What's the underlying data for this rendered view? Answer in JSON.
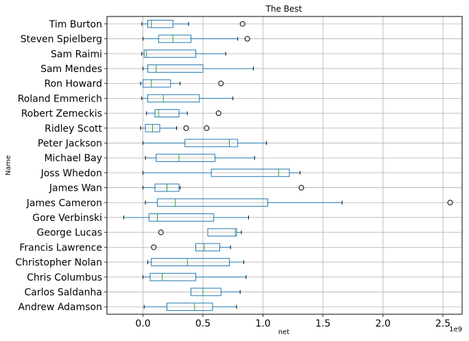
{
  "chart_data": {
    "type": "boxplot",
    "title": "The Best",
    "xlabel": "net",
    "ylabel": "Name",
    "x_offset_label": "1e9",
    "xlim": [
      -0.3,
      2.66
    ],
    "xticks": [
      0.0,
      0.5,
      1.0,
      1.5,
      2.0,
      2.5
    ],
    "xtick_labels": [
      "0.0",
      "0.5",
      "1.0",
      "1.5",
      "2.0",
      "2.5"
    ],
    "grid": true,
    "colors": {
      "box": "#1f77b4",
      "median": "#2ca02c",
      "whisker": "#000000",
      "grid": "#b0b0b0"
    },
    "categories": [
      "Tim Burton",
      "Steven Spielberg",
      "Sam Raimi",
      "Sam Mendes",
      "Ron Howard",
      "Roland Emmerich",
      "Robert Zemeckis",
      "Ridley Scott",
      "Peter Jackson",
      "Michael Bay",
      "Joss Whedon",
      "James Wan",
      "James Cameron",
      "Gore Verbinski",
      "George Lucas",
      "Francis Lawrence",
      "Christopher Nolan",
      "Chris Columbus",
      "Carlos Saldanha",
      "Andrew Adamson"
    ],
    "boxes": [
      {
        "name": "Tim Burton",
        "whislo": -0.01,
        "q1": 0.04,
        "med": 0.07,
        "q3": 0.25,
        "whishi": 0.38,
        "fliers": [
          0.83
        ]
      },
      {
        "name": "Steven Spielberg",
        "whislo": 0.0,
        "q1": 0.13,
        "med": 0.25,
        "q3": 0.4,
        "whishi": 0.79,
        "fliers": [
          0.87
        ]
      },
      {
        "name": "Sam Raimi",
        "whislo": -0.01,
        "q1": 0.01,
        "med": 0.03,
        "q3": 0.44,
        "whishi": 0.69,
        "fliers": []
      },
      {
        "name": "Sam Mendes",
        "whislo": 0.0,
        "q1": 0.04,
        "med": 0.11,
        "q3": 0.5,
        "whishi": 0.92,
        "fliers": []
      },
      {
        "name": "Ron Howard",
        "whislo": -0.02,
        "q1": 0.0,
        "med": 0.07,
        "q3": 0.23,
        "whishi": 0.31,
        "fliers": [
          0.65
        ]
      },
      {
        "name": "Roland Emmerich",
        "whislo": -0.01,
        "q1": 0.04,
        "med": 0.17,
        "q3": 0.47,
        "whishi": 0.75,
        "fliers": []
      },
      {
        "name": "Robert Zemeckis",
        "whislo": 0.03,
        "q1": 0.1,
        "med": 0.13,
        "q3": 0.3,
        "whishi": 0.37,
        "fliers": [
          0.63
        ]
      },
      {
        "name": "Ridley Scott",
        "whislo": -0.02,
        "q1": 0.02,
        "med": 0.08,
        "q3": 0.14,
        "whishi": 0.28,
        "fliers": [
          0.36,
          0.53
        ]
      },
      {
        "name": "Peter Jackson",
        "whislo": 0.0,
        "q1": 0.35,
        "med": 0.72,
        "q3": 0.79,
        "whishi": 1.03,
        "fliers": []
      },
      {
        "name": "Michael Bay",
        "whislo": 0.02,
        "q1": 0.11,
        "med": 0.3,
        "q3": 0.6,
        "whishi": 0.93,
        "fliers": []
      },
      {
        "name": "Joss Whedon",
        "whislo": 0.0,
        "q1": 0.57,
        "med": 1.13,
        "q3": 1.22,
        "whishi": 1.31,
        "fliers": []
      },
      {
        "name": "James Wan",
        "whislo": 0.0,
        "q1": 0.1,
        "med": 0.2,
        "q3": 0.3,
        "whishi": 0.31,
        "fliers": [
          1.32
        ]
      },
      {
        "name": "James Cameron",
        "whislo": 0.02,
        "q1": 0.12,
        "med": 0.27,
        "q3": 1.04,
        "whishi": 1.66,
        "fliers": [
          2.56
        ]
      },
      {
        "name": "Gore Verbinski",
        "whislo": -0.16,
        "q1": 0.05,
        "med": 0.12,
        "q3": 0.59,
        "whishi": 0.88,
        "fliers": []
      },
      {
        "name": "George Lucas",
        "whislo": 0.54,
        "q1": 0.54,
        "med": 0.77,
        "q3": 0.78,
        "whishi": 0.82,
        "fliers": [
          0.15
        ]
      },
      {
        "name": "Francis Lawrence",
        "whislo": 0.44,
        "q1": 0.44,
        "med": 0.51,
        "q3": 0.64,
        "whishi": 0.73,
        "fliers": [
          0.09
        ]
      },
      {
        "name": "Christopher Nolan",
        "whislo": 0.04,
        "q1": 0.07,
        "med": 0.37,
        "q3": 0.72,
        "whishi": 0.84,
        "fliers": []
      },
      {
        "name": "Chris Columbus",
        "whislo": 0.0,
        "q1": 0.06,
        "med": 0.16,
        "q3": 0.44,
        "whishi": 0.86,
        "fliers": []
      },
      {
        "name": "Carlos Saldanha",
        "whislo": 0.4,
        "q1": 0.4,
        "med": 0.5,
        "q3": 0.65,
        "whishi": 0.81,
        "fliers": []
      },
      {
        "name": "Andrew Adamson",
        "whislo": 0.01,
        "q1": 0.2,
        "med": 0.43,
        "q3": 0.58,
        "whishi": 0.78,
        "fliers": []
      }
    ]
  }
}
